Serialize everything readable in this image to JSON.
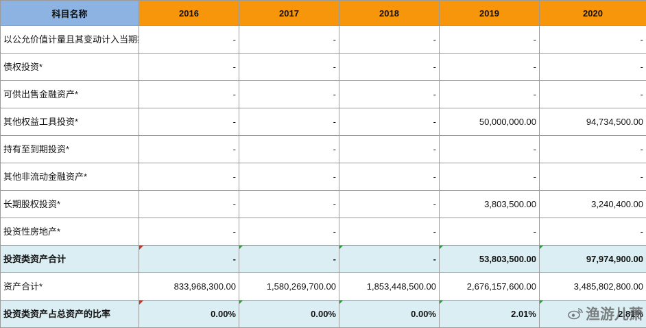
{
  "header": {
    "label": "科目名称",
    "years": [
      "2016",
      "2017",
      "2018",
      "2019",
      "2020"
    ]
  },
  "rows": [
    {
      "label": "以公允价值计量且其变动计入当期损益的金融资产*",
      "values": [
        "-",
        "-",
        "-",
        "-",
        "-"
      ]
    },
    {
      "label": "债权投资*",
      "values": [
        "-",
        "-",
        "-",
        "-",
        "-"
      ]
    },
    {
      "label": "可供出售金融资产*",
      "values": [
        "-",
        "-",
        "-",
        "-",
        "-"
      ]
    },
    {
      "label": "其他权益工具投资*",
      "values": [
        "-",
        "-",
        "-",
        "50,000,000.00",
        "94,734,500.00"
      ]
    },
    {
      "label": "持有至到期投资*",
      "values": [
        "-",
        "-",
        "-",
        "-",
        "-"
      ]
    },
    {
      "label": "其他非流动金融资产*",
      "values": [
        "-",
        "-",
        "-",
        "-",
        "-"
      ]
    },
    {
      "label": "长期股权投资*",
      "values": [
        "-",
        "-",
        "-",
        "3,803,500.00",
        "3,240,400.00"
      ]
    },
    {
      "label": "投资性房地产*",
      "values": [
        "-",
        "-",
        "-",
        "-",
        "-"
      ]
    }
  ],
  "subtotal": {
    "label": "投资类资产合计",
    "values": [
      "-",
      "-",
      "-",
      "53,803,500.00",
      "97,974,900.00"
    ]
  },
  "total": {
    "label": "资产合计*",
    "values": [
      "833,968,300.00",
      "1,580,269,700.00",
      "1,853,448,500.00",
      "2,676,157,600.00",
      "3,485,802,800.00"
    ]
  },
  "ratio": {
    "label": "投资类资产占总资产的比率",
    "values": [
      "0.00%",
      "0.00%",
      "0.00%",
      "2.01%",
      "2.81%"
    ]
  },
  "watermark": {
    "text": "渔游儿萧",
    "icon": "weibo-icon"
  },
  "colors": {
    "header_label_bg": "#8db3e2",
    "header_year_bg": "#f7960b",
    "highlight_row_bg": "#dbeef4"
  }
}
